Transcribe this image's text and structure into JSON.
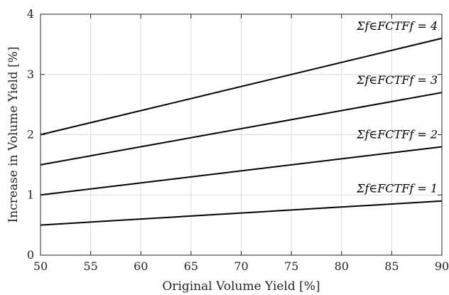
{
  "chart_data": {
    "type": "line",
    "title": "",
    "xlabel": "Original Volume Yield [%]",
    "ylabel": "Increase in Volume Yield [%]",
    "xlim": [
      50,
      90
    ],
    "ylim": [
      0,
      4
    ],
    "xticks": [
      50,
      55,
      60,
      65,
      70,
      75,
      80,
      85,
      90
    ],
    "yticks": [
      0,
      1,
      2,
      3,
      4
    ],
    "grid": true,
    "series": [
      {
        "name": "Σf∈FCTFf = 1",
        "x": [
          50,
          90
        ],
        "y": [
          0.5,
          0.9
        ]
      },
      {
        "name": "Σf∈FCTFf = 2",
        "x": [
          50,
          90
        ],
        "y": [
          1.0,
          1.8
        ]
      },
      {
        "name": "Σf∈FCTFf = 3",
        "x": [
          50,
          90
        ],
        "y": [
          1.5,
          2.7
        ]
      },
      {
        "name": "Σf∈FCTFf = 4",
        "x": [
          50,
          90
        ],
        "y": [
          2.0,
          3.6
        ]
      }
    ]
  }
}
